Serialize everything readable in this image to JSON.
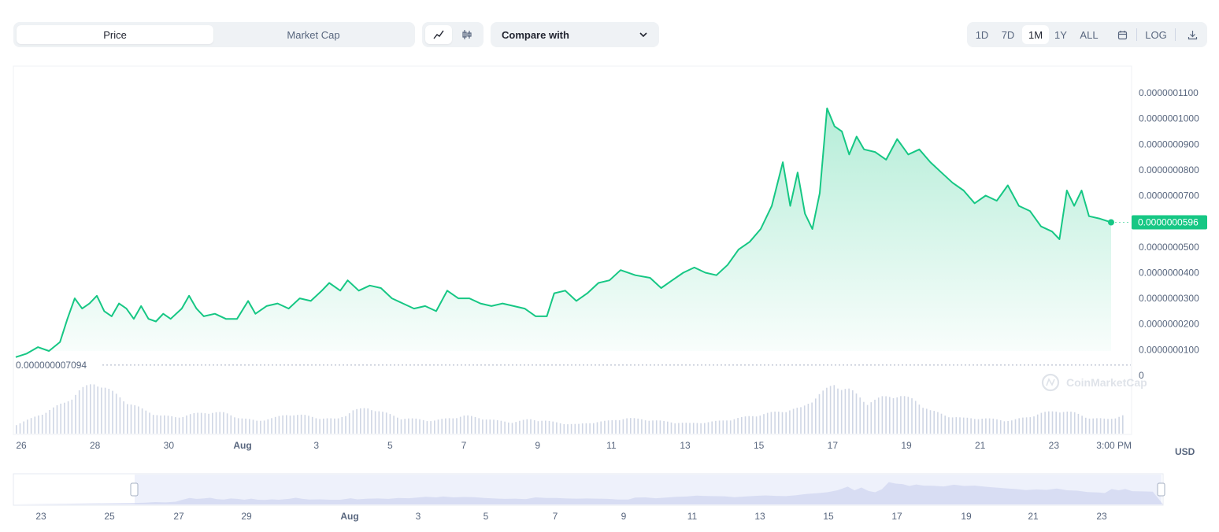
{
  "tabs": {
    "price": "Price",
    "market_cap": "Market Cap"
  },
  "compare": {
    "label": "Compare with"
  },
  "ranges": [
    "1D",
    "7D",
    "1M",
    "1Y",
    "ALL"
  ],
  "active_range": "1M",
  "log_label": "LOG",
  "currency": "USD",
  "watermark": "CoinMarketCap",
  "colors": {
    "line": "#16c784",
    "badge": "#16c784",
    "accent_text": "#58667e",
    "volume": "#cfd6e4",
    "navigator": "#e8ecfa"
  },
  "chart_data": {
    "type": "area",
    "ylim": [
      0,
      1.1e-07
    ],
    "y_ticks": [
      "0.0000001100",
      "0.0000001000",
      "0.0000000900",
      "0.0000000800",
      "0.0000000700",
      "0.0000000600",
      "0.0000000500",
      "0.0000000400",
      "0.0000000300",
      "0.0000000200",
      "0.0000000100",
      "0"
    ],
    "y_tick_values": [
      1.1e-07,
      1e-07,
      9e-08,
      8e-08,
      7e-08,
      6e-08,
      5e-08,
      4e-08,
      3e-08,
      2e-08,
      1e-08,
      0
    ],
    "current_price_label": "0.0000000596",
    "current_price": 5.96e-08,
    "min_label": "0.000000007094",
    "min_value": 7.094e-09,
    "x_tick_labels": [
      "26",
      "28",
      "30",
      "Aug",
      "3",
      "5",
      "7",
      "9",
      "11",
      "13",
      "15",
      "17",
      "19",
      "21",
      "23",
      "3:00 PM"
    ],
    "x_tick_days": [
      0,
      2,
      4,
      6,
      8,
      10,
      12,
      14,
      16,
      18,
      20,
      22,
      24,
      26,
      28,
      29.7
    ],
    "x_days_span": [
      0,
      30
    ],
    "series": [
      {
        "values": [
          [
            0.0,
            7.1e-09
          ],
          [
            0.3,
            8.5e-09
          ],
          [
            0.6,
            1.1e-08
          ],
          [
            0.9,
            9.5e-09
          ],
          [
            1.2,
            1.3e-08
          ],
          [
            1.4,
            2.2e-08
          ],
          [
            1.6,
            3e-08
          ],
          [
            1.8,
            2.6e-08
          ],
          [
            2.0,
            2.8e-08
          ],
          [
            2.2,
            3.1e-08
          ],
          [
            2.4,
            2.5e-08
          ],
          [
            2.6,
            2.3e-08
          ],
          [
            2.8,
            2.8e-08
          ],
          [
            3.0,
            2.6e-08
          ],
          [
            3.2,
            2.2e-08
          ],
          [
            3.4,
            2.7e-08
          ],
          [
            3.6,
            2.2e-08
          ],
          [
            3.8,
            2.1e-08
          ],
          [
            4.0,
            2.4e-08
          ],
          [
            4.2,
            2.2e-08
          ],
          [
            4.5,
            2.6e-08
          ],
          [
            4.7,
            3.1e-08
          ],
          [
            4.9,
            2.6e-08
          ],
          [
            5.1,
            2.3e-08
          ],
          [
            5.4,
            2.4e-08
          ],
          [
            5.7,
            2.2e-08
          ],
          [
            6.0,
            2.2e-08
          ],
          [
            6.3,
            2.9e-08
          ],
          [
            6.5,
            2.4e-08
          ],
          [
            6.8,
            2.7e-08
          ],
          [
            7.1,
            2.8e-08
          ],
          [
            7.4,
            2.6e-08
          ],
          [
            7.7,
            3e-08
          ],
          [
            8.0,
            2.9e-08
          ],
          [
            8.3,
            3.3e-08
          ],
          [
            8.5,
            3.6e-08
          ],
          [
            8.8,
            3.3e-08
          ],
          [
            9.0,
            3.7e-08
          ],
          [
            9.3,
            3.3e-08
          ],
          [
            9.6,
            3.5e-08
          ],
          [
            9.9,
            3.4e-08
          ],
          [
            10.2,
            3e-08
          ],
          [
            10.5,
            2.8e-08
          ],
          [
            10.8,
            2.6e-08
          ],
          [
            11.1,
            2.7e-08
          ],
          [
            11.4,
            2.5e-08
          ],
          [
            11.7,
            3.3e-08
          ],
          [
            12.0,
            3e-08
          ],
          [
            12.3,
            3e-08
          ],
          [
            12.6,
            2.8e-08
          ],
          [
            12.9,
            2.7e-08
          ],
          [
            13.2,
            2.8e-08
          ],
          [
            13.5,
            2.7e-08
          ],
          [
            13.8,
            2.6e-08
          ],
          [
            14.1,
            2.3e-08
          ],
          [
            14.4,
            2.3e-08
          ],
          [
            14.6,
            3.2e-08
          ],
          [
            14.9,
            3.3e-08
          ],
          [
            15.2,
            2.9e-08
          ],
          [
            15.5,
            3.2e-08
          ],
          [
            15.8,
            3.6e-08
          ],
          [
            16.1,
            3.7e-08
          ],
          [
            16.4,
            4.1e-08
          ],
          [
            16.8,
            3.9e-08
          ],
          [
            17.2,
            3.8e-08
          ],
          [
            17.5,
            3.4e-08
          ],
          [
            17.8,
            3.7e-08
          ],
          [
            18.1,
            4e-08
          ],
          [
            18.4,
            4.2e-08
          ],
          [
            18.7,
            4e-08
          ],
          [
            19.0,
            3.9e-08
          ],
          [
            19.3,
            4.3e-08
          ],
          [
            19.6,
            4.9e-08
          ],
          [
            19.9,
            5.2e-08
          ],
          [
            20.2,
            5.7e-08
          ],
          [
            20.5,
            6.6e-08
          ],
          [
            20.8,
            8.3e-08
          ],
          [
            21.0,
            6.6e-08
          ],
          [
            21.2,
            7.9e-08
          ],
          [
            21.4,
            6.3e-08
          ],
          [
            21.6,
            5.7e-08
          ],
          [
            21.8,
            7.1e-08
          ],
          [
            22.0,
            1.04e-07
          ],
          [
            22.2,
            9.7e-08
          ],
          [
            22.4,
            9.5e-08
          ],
          [
            22.6,
            8.6e-08
          ],
          [
            22.8,
            9.3e-08
          ],
          [
            23.0,
            8.8e-08
          ],
          [
            23.3,
            8.7e-08
          ],
          [
            23.6,
            8.4e-08
          ],
          [
            23.9,
            9.2e-08
          ],
          [
            24.2,
            8.6e-08
          ],
          [
            24.5,
            8.8e-08
          ],
          [
            24.8,
            8.3e-08
          ],
          [
            25.1,
            7.9e-08
          ],
          [
            25.4,
            7.5e-08
          ],
          [
            25.7,
            7.2e-08
          ],
          [
            26.0,
            6.7e-08
          ],
          [
            26.3,
            7e-08
          ],
          [
            26.6,
            6.8e-08
          ],
          [
            26.9,
            7.4e-08
          ],
          [
            27.2,
            6.6e-08
          ],
          [
            27.5,
            6.4e-08
          ],
          [
            27.8,
            5.8e-08
          ],
          [
            28.1,
            5.6e-08
          ],
          [
            28.3,
            5.3e-08
          ],
          [
            28.5,
            7.2e-08
          ],
          [
            28.7,
            6.6e-08
          ],
          [
            28.9,
            7.2e-08
          ],
          [
            29.1,
            6.2e-08
          ],
          [
            29.4,
            6.1e-08
          ],
          [
            29.7,
            5.96e-08
          ]
        ]
      }
    ],
    "volume_values": [
      0.18,
      0.3,
      0.45,
      0.6,
      0.85,
      1.0,
      0.8,
      0.6,
      0.45,
      0.35,
      0.32,
      0.38,
      0.42,
      0.4,
      0.3,
      0.25,
      0.3,
      0.38,
      0.35,
      0.3,
      0.28,
      0.45,
      0.5,
      0.4,
      0.3,
      0.28,
      0.25,
      0.3,
      0.35,
      0.3,
      0.25,
      0.22,
      0.28,
      0.25,
      0.2,
      0.18,
      0.22,
      0.25,
      0.3,
      0.28,
      0.25,
      0.22,
      0.2,
      0.22,
      0.25,
      0.3,
      0.35,
      0.4,
      0.45,
      0.5,
      0.75,
      0.95,
      0.85,
      0.6,
      0.7,
      0.75,
      0.65,
      0.45,
      0.35,
      0.3,
      0.3,
      0.28,
      0.25,
      0.32,
      0.4,
      0.45,
      0.4,
      0.3,
      0.28,
      0.35
    ],
    "navigator_x_tick_labels": [
      "23",
      "25",
      "27",
      "29",
      "Aug",
      "3",
      "5",
      "7",
      "9",
      "11",
      "13",
      "15",
      "17",
      "19",
      "21",
      "23"
    ]
  }
}
